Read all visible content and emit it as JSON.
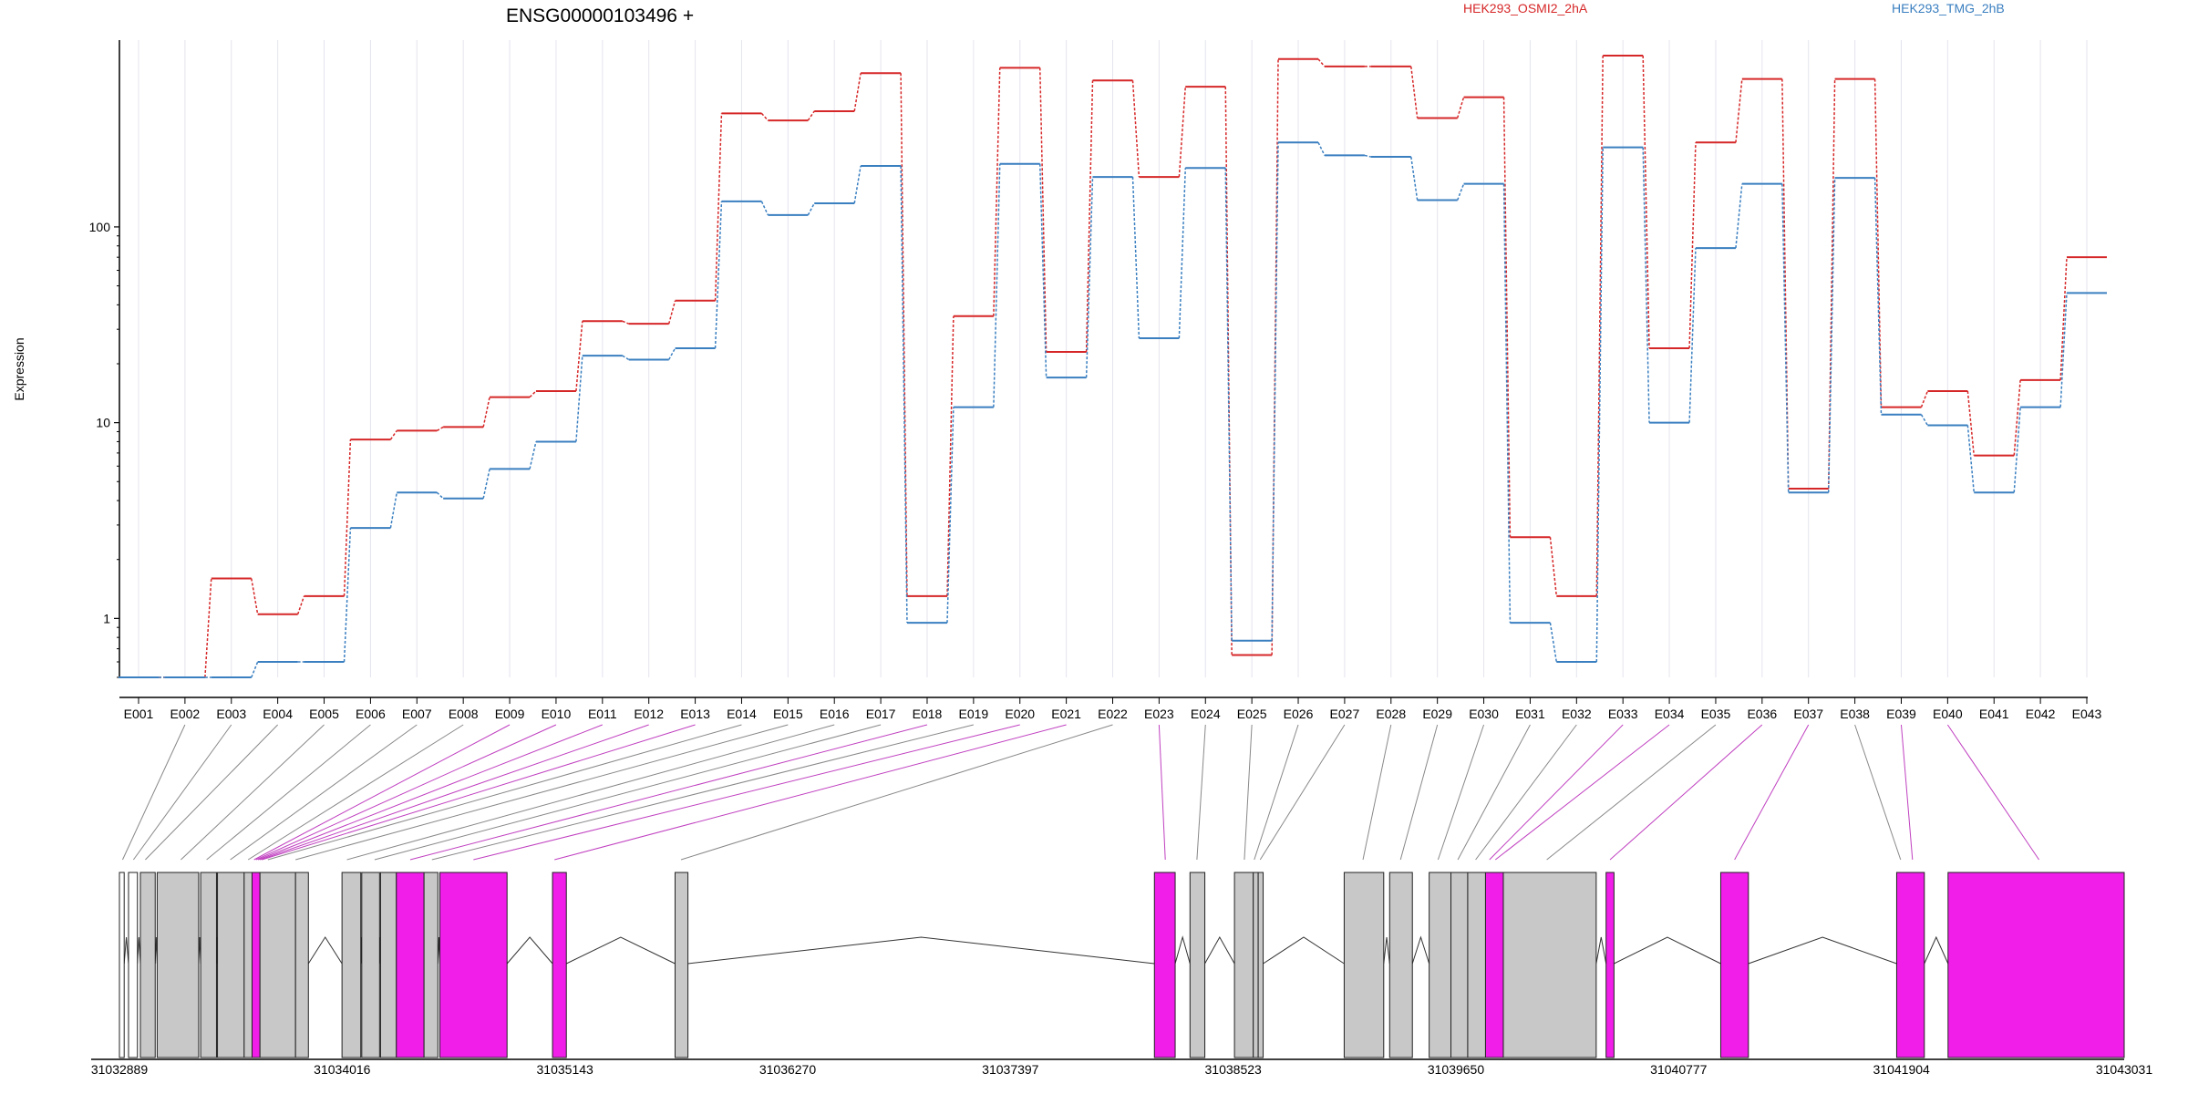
{
  "title": "ENSG00000103496 +",
  "ylabel": "Expression",
  "colors": {
    "series_a": "#d62728",
    "series_b": "#3a7fc0",
    "exon_highlight": "#f01ee8",
    "exon_normal": "#c8c8c8",
    "connector_normal": "#888888",
    "connector_highlight": "#c040c0",
    "grid": "#e4e4ee"
  },
  "chart_data": {
    "type": "line",
    "scale": "log",
    "ylim": [
      0.5,
      900
    ],
    "yticks": [
      1,
      10,
      100
    ],
    "ytick_labels": [
      "1",
      "10",
      "100"
    ],
    "categories": [
      "E001",
      "E002",
      "E003",
      "E004",
      "E005",
      "E006",
      "E007",
      "E008",
      "E009",
      "E010",
      "E011",
      "E012",
      "E013",
      "E014",
      "E015",
      "E016",
      "E017",
      "E018",
      "E019",
      "E020",
      "E021",
      "E022",
      "E023",
      "E024",
      "E025",
      "E026",
      "E027",
      "E028",
      "E029",
      "E030",
      "E031",
      "E032",
      "E033",
      "E034",
      "E035",
      "E036",
      "E037",
      "E038",
      "E039",
      "E040",
      "E041",
      "E042",
      "E043"
    ],
    "series": [
      {
        "name": "HEK293_OSMI2_2hA",
        "color": "#d62728",
        "values": [
          0.5,
          0.5,
          1.6,
          1.05,
          1.3,
          8.2,
          9.1,
          9.5,
          13.5,
          14.5,
          33,
          32,
          42,
          380,
          350,
          390,
          610,
          1.3,
          35,
          650,
          23,
          560,
          180,
          520,
          0.65,
          720,
          660,
          660,
          360,
          460,
          2.6,
          1.3,
          750,
          24,
          270,
          570,
          4.6,
          570,
          12,
          14.5,
          6.8,
          16.5,
          70
        ]
      },
      {
        "name": "HEK293_TMG_2hB",
        "color": "#3a7fc0",
        "values": [
          0.5,
          0.5,
          0.5,
          0.6,
          0.6,
          2.9,
          4.4,
          4.1,
          5.8,
          8.0,
          22,
          21,
          24,
          135,
          115,
          132,
          205,
          0.95,
          12,
          210,
          17,
          180,
          27,
          200,
          0.77,
          270,
          232,
          228,
          137,
          166,
          0.95,
          0.6,
          255,
          10,
          78,
          166,
          4.4,
          178,
          11,
          9.7,
          4.4,
          12,
          46
        ]
      }
    ]
  },
  "gene_model": {
    "coords": [
      "31032889",
      "31034016",
      "31035143",
      "31036270",
      "31037397",
      "31038523",
      "31039650",
      "31040777",
      "31041904",
      "31043031"
    ],
    "start": 31032889,
    "end": 31043031,
    "exons": [
      {
        "s": 31032889,
        "e": 31032913,
        "hl": false,
        "fill": "#ffffff"
      },
      {
        "s": 31032935,
        "e": 31032980,
        "hl": false,
        "fill": "#ffffff"
      },
      {
        "s": 31032995,
        "e": 31033070,
        "hl": false
      },
      {
        "s": 31033080,
        "e": 31033290,
        "hl": false
      },
      {
        "s": 31033300,
        "e": 31033380,
        "hl": false
      },
      {
        "s": 31033385,
        "e": 31033520,
        "hl": false
      },
      {
        "s": 31033520,
        "e": 31033560,
        "hl": false
      },
      {
        "s": 31033560,
        "e": 31033600,
        "hl": true
      },
      {
        "s": 31033600,
        "e": 31033780,
        "hl": false
      },
      {
        "s": 31033780,
        "e": 31033845,
        "hl": false
      },
      {
        "s": 31034015,
        "e": 31034110,
        "hl": false
      },
      {
        "s": 31034115,
        "e": 31034205,
        "hl": false
      },
      {
        "s": 31034210,
        "e": 31034290,
        "hl": false
      },
      {
        "s": 31034290,
        "e": 31034430,
        "hl": true
      },
      {
        "s": 31034430,
        "e": 31034500,
        "hl": false
      },
      {
        "s": 31034510,
        "e": 31034850,
        "hl": true
      },
      {
        "s": 31035080,
        "e": 31035150,
        "hl": true
      },
      {
        "s": 31035700,
        "e": 31035765,
        "hl": false
      },
      {
        "s": 31038125,
        "e": 31038230,
        "hl": true
      },
      {
        "s": 31038305,
        "e": 31038380,
        "hl": false
      },
      {
        "s": 31038530,
        "e": 31038625,
        "hl": false
      },
      {
        "s": 31038625,
        "e": 31038650,
        "hl": false
      },
      {
        "s": 31038650,
        "e": 31038675,
        "hl": false
      },
      {
        "s": 31039085,
        "e": 31039285,
        "hl": false
      },
      {
        "s": 31039315,
        "e": 31039430,
        "hl": false
      },
      {
        "s": 31039515,
        "e": 31039625,
        "hl": false
      },
      {
        "s": 31039625,
        "e": 31039710,
        "hl": false
      },
      {
        "s": 31039710,
        "e": 31039800,
        "hl": false
      },
      {
        "s": 31039800,
        "e": 31039890,
        "hl": true
      },
      {
        "s": 31039890,
        "e": 31040360,
        "hl": false
      },
      {
        "s": 31040410,
        "e": 31040450,
        "hl": true
      },
      {
        "s": 31040990,
        "e": 31041130,
        "hl": true
      },
      {
        "s": 31041880,
        "e": 31042020,
        "hl": true
      },
      {
        "s": 31042140,
        "e": 31043031,
        "hl": true
      }
    ],
    "connectors": [
      {
        "cat": 1,
        "pos": 31032905,
        "hl": false
      },
      {
        "cat": 2,
        "pos": 31032960,
        "hl": false
      },
      {
        "cat": 3,
        "pos": 31033020,
        "hl": false
      },
      {
        "cat": 4,
        "pos": 31033200,
        "hl": false
      },
      {
        "cat": 5,
        "pos": 31033330,
        "hl": false
      },
      {
        "cat": 6,
        "pos": 31033450,
        "hl": false
      },
      {
        "cat": 7,
        "pos": 31033540,
        "hl": false
      },
      {
        "cat": 8,
        "pos": 31033570,
        "hl": true
      },
      {
        "cat": 9,
        "pos": 31033580,
        "hl": true
      },
      {
        "cat": 10,
        "pos": 31033590,
        "hl": true
      },
      {
        "cat": 11,
        "pos": 31033600,
        "hl": true
      },
      {
        "cat": 12,
        "pos": 31033610,
        "hl": true
      },
      {
        "cat": 13,
        "pos": 31033640,
        "hl": false
      },
      {
        "cat": 14,
        "pos": 31033780,
        "hl": false
      },
      {
        "cat": 15,
        "pos": 31034040,
        "hl": false
      },
      {
        "cat": 16,
        "pos": 31034180,
        "hl": false
      },
      {
        "cat": 17,
        "pos": 31034360,
        "hl": true
      },
      {
        "cat": 18,
        "pos": 31034470,
        "hl": false
      },
      {
        "cat": 19,
        "pos": 31034680,
        "hl": true
      },
      {
        "cat": 20,
        "pos": 31035090,
        "hl": true
      },
      {
        "cat": 21,
        "pos": 31035730,
        "hl": false
      },
      {
        "cat": 22,
        "pos": 31038180,
        "hl": true
      },
      {
        "cat": 23,
        "pos": 31038340,
        "hl": false
      },
      {
        "cat": 24,
        "pos": 31038580,
        "hl": false
      },
      {
        "cat": 25,
        "pos": 31038630,
        "hl": false
      },
      {
        "cat": 26,
        "pos": 31038660,
        "hl": false
      },
      {
        "cat": 27,
        "pos": 31039180,
        "hl": false
      },
      {
        "cat": 28,
        "pos": 31039370,
        "hl": false
      },
      {
        "cat": 29,
        "pos": 31039560,
        "hl": false
      },
      {
        "cat": 30,
        "pos": 31039660,
        "hl": false
      },
      {
        "cat": 31,
        "pos": 31039750,
        "hl": false
      },
      {
        "cat": 32,
        "pos": 31039820,
        "hl": true
      },
      {
        "cat": 33,
        "pos": 31039850,
        "hl": true
      },
      {
        "cat": 34,
        "pos": 31040110,
        "hl": false
      },
      {
        "cat": 35,
        "pos": 31040430,
        "hl": true
      },
      {
        "cat": 36,
        "pos": 31041060,
        "hl": true
      },
      {
        "cat": 37,
        "pos": 31041900,
        "hl": false
      },
      {
        "cat": 38,
        "pos": 31041960,
        "hl": true
      },
      {
        "cat": 39,
        "pos": 31042600,
        "hl": true
      }
    ]
  }
}
